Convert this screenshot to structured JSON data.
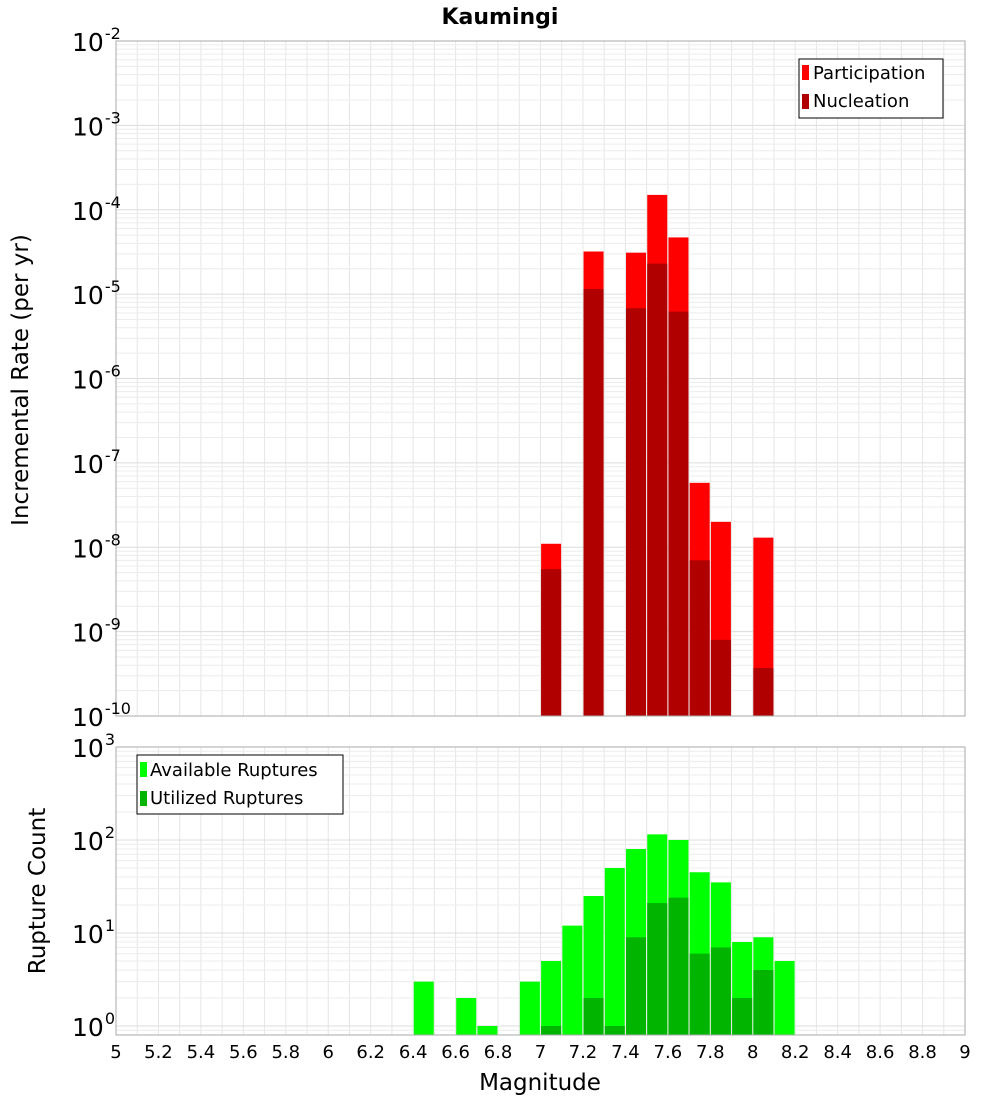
{
  "chart_data": [
    {
      "type": "bar",
      "title": "Kaumingi",
      "xlabel": "",
      "ylabel": "Incremental Rate (per yr)",
      "yscale": "log",
      "ylim": [
        1e-10,
        0.01
      ],
      "xlim": [
        5,
        9
      ],
      "y_ticks": [
        {
          "base": "10",
          "exp": "-10",
          "value": 1e-10
        },
        {
          "base": "10",
          "exp": "-9",
          "value": 1e-09
        },
        {
          "base": "10",
          "exp": "-8",
          "value": 1e-08
        },
        {
          "base": "10",
          "exp": "-7",
          "value": 1e-07
        },
        {
          "base": "10",
          "exp": "-6",
          "value": 1e-06
        },
        {
          "base": "10",
          "exp": "-5",
          "value": 1e-05
        },
        {
          "base": "10",
          "exp": "-4",
          "value": 0.0001
        },
        {
          "base": "10",
          "exp": "-3",
          "value": 0.001
        },
        {
          "base": "10",
          "exp": "-2",
          "value": 0.01
        }
      ],
      "legend_position": "top-right",
      "series": [
        {
          "name": "Participation",
          "color": "#ff0000",
          "x": [
            7.05,
            7.25,
            7.45,
            7.55,
            7.65,
            7.75,
            7.85,
            8.05
          ],
          "values": [
            1.1e-08,
            3.2e-05,
            3.1e-05,
            0.00015,
            4.7e-05,
            5.8e-08,
            2e-08,
            1.3e-08
          ]
        },
        {
          "name": "Nucleation",
          "color": "#b00000",
          "x": [
            7.05,
            7.25,
            7.45,
            7.55,
            7.65,
            7.75,
            7.85,
            8.05
          ],
          "values": [
            5.5e-09,
            1.15e-05,
            6.8e-06,
            2.3e-05,
            6.2e-06,
            7e-09,
            8e-10,
            3.7e-10
          ]
        }
      ]
    },
    {
      "type": "bar",
      "title": "",
      "xlabel": "Magnitude",
      "ylabel": "Rupture Count",
      "yscale": "log",
      "ylim": [
        0.8,
        1000
      ],
      "xlim": [
        5,
        9
      ],
      "x_ticks": [
        "5",
        "5.2",
        "5.4",
        "5.6",
        "5.8",
        "6",
        "6.2",
        "6.4",
        "6.6",
        "6.8",
        "7",
        "7.2",
        "7.4",
        "7.6",
        "7.8",
        "8",
        "8.2",
        "8.4",
        "8.6",
        "8.8",
        "9"
      ],
      "y_ticks": [
        {
          "base": "10",
          "exp": "0",
          "value": 1
        },
        {
          "base": "10",
          "exp": "1",
          "value": 10
        },
        {
          "base": "10",
          "exp": "2",
          "value": 100
        },
        {
          "base": "10",
          "exp": "3",
          "value": 1000
        }
      ],
      "legend_position": "top-left",
      "series": [
        {
          "name": "Available Ruptures",
          "color": "#00ff00",
          "x": [
            6.45,
            6.65,
            6.75,
            6.95,
            7.05,
            7.15,
            7.25,
            7.35,
            7.45,
            7.55,
            7.65,
            7.75,
            7.85,
            7.95,
            8.05,
            8.15
          ],
          "values": [
            3,
            2,
            1,
            3,
            5,
            12,
            25,
            50,
            80,
            115,
            100,
            45,
            35,
            8,
            9,
            5
          ]
        },
        {
          "name": "Utilized Ruptures",
          "color": "#00b400",
          "x": [
            7.05,
            7.25,
            7.35,
            7.45,
            7.55,
            7.65,
            7.75,
            7.85,
            7.95,
            8.05
          ],
          "values": [
            1,
            2,
            1,
            9,
            21,
            24,
            6,
            7,
            2,
            4
          ]
        }
      ]
    }
  ]
}
